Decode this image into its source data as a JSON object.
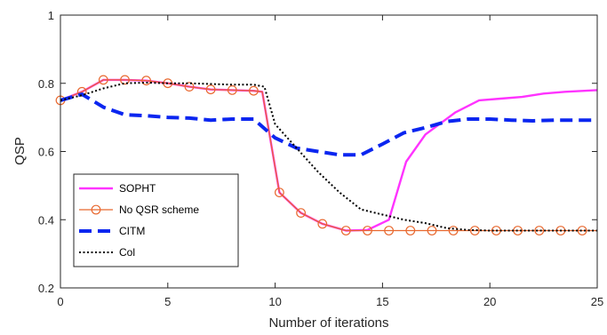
{
  "chart_data": {
    "type": "line",
    "title": "",
    "xlabel": "Number of iterations",
    "ylabel": "QSP",
    "xlim": [
      0,
      25
    ],
    "ylim": [
      0.2,
      1.0
    ],
    "xticks": [
      0,
      5,
      10,
      15,
      20,
      25
    ],
    "yticks": [
      0.2,
      0.4,
      0.6,
      0.8,
      1
    ],
    "xtick_labels": [
      "0",
      "5",
      "10",
      "15",
      "20",
      "25"
    ],
    "ytick_labels": [
      "0.2",
      "0.4",
      "0.6",
      "0.8",
      "1"
    ],
    "grid": false,
    "legend_position": "bottom-left",
    "series": [
      {
        "name": "SOPHT",
        "color": "#ff33ff",
        "style": "solid",
        "x": [
          0,
          1,
          2,
          3,
          4,
          5,
          6,
          7,
          8,
          9,
          9.4,
          10.2,
          11.2,
          12.2,
          13.3,
          14.3,
          15.3,
          16.1,
          17,
          18.4,
          19.5,
          20.5,
          21.5,
          22.5,
          23.5,
          25
        ],
        "y": [
          0.75,
          0.775,
          0.81,
          0.81,
          0.808,
          0.8,
          0.79,
          0.782,
          0.78,
          0.778,
          0.775,
          0.48,
          0.42,
          0.388,
          0.368,
          0.37,
          0.4,
          0.57,
          0.65,
          0.715,
          0.75,
          0.755,
          0.76,
          0.77,
          0.775,
          0.78
        ]
      },
      {
        "name": "No QSR scheme",
        "color": "#e8682f",
        "style": "solid",
        "marker": "circle",
        "x": [
          0,
          1,
          2,
          3,
          4,
          5,
          6,
          7,
          8,
          9,
          9.4,
          10.2,
          11.2,
          12.2,
          13.3,
          14.3,
          15.3,
          16.3,
          17.3,
          18.3,
          19.3,
          20.3,
          21.3,
          22.3,
          23.3,
          24.3,
          25
        ],
        "y": [
          0.75,
          0.775,
          0.81,
          0.81,
          0.808,
          0.8,
          0.79,
          0.782,
          0.78,
          0.778,
          0.775,
          0.48,
          0.42,
          0.388,
          0.368,
          0.368,
          0.368,
          0.368,
          0.368,
          0.368,
          0.368,
          0.368,
          0.368,
          0.368,
          0.368,
          0.368,
          0.368
        ],
        "marker_x": [
          0,
          1,
          2,
          3,
          4,
          5,
          6,
          7,
          8,
          9,
          10.2,
          11.2,
          12.2,
          13.3,
          14.3,
          15.3,
          16.3,
          17.3,
          18.3,
          19.3,
          20.3,
          21.3,
          22.3,
          23.3,
          24.3
        ],
        "marker_y": [
          0.75,
          0.775,
          0.81,
          0.81,
          0.808,
          0.8,
          0.79,
          0.782,
          0.78,
          0.778,
          0.48,
          0.42,
          0.388,
          0.368,
          0.368,
          0.368,
          0.368,
          0.368,
          0.368,
          0.368,
          0.368,
          0.368,
          0.368,
          0.368,
          0.368
        ]
      },
      {
        "name": "CITM",
        "color": "#0b26f0",
        "style": "dashed",
        "x": [
          0,
          1,
          2,
          3,
          4,
          5,
          6,
          7,
          8,
          9,
          10,
          11,
          12,
          13,
          14,
          15,
          16,
          17,
          18,
          19,
          20,
          21,
          22,
          23,
          24,
          25
        ],
        "y": [
          0.75,
          0.768,
          0.73,
          0.708,
          0.705,
          0.7,
          0.698,
          0.692,
          0.695,
          0.695,
          0.64,
          0.61,
          0.6,
          0.59,
          0.59,
          0.622,
          0.655,
          0.67,
          0.688,
          0.695,
          0.695,
          0.692,
          0.69,
          0.692,
          0.692,
          0.692
        ]
      },
      {
        "name": "Col",
        "color": "#000000",
        "style": "dotted",
        "x": [
          0,
          1,
          2,
          3,
          4,
          5,
          6,
          7,
          8,
          9,
          9.5,
          10,
          11,
          12,
          13,
          14,
          15,
          16,
          17,
          18,
          19,
          20,
          21,
          22,
          23,
          24,
          25
        ],
        "y": [
          0.75,
          0.765,
          0.785,
          0.8,
          0.802,
          0.8,
          0.8,
          0.798,
          0.796,
          0.796,
          0.79,
          0.68,
          0.61,
          0.54,
          0.48,
          0.43,
          0.415,
          0.4,
          0.39,
          0.375,
          0.37,
          0.368,
          0.368,
          0.368,
          0.368,
          0.368,
          0.368
        ]
      }
    ]
  }
}
